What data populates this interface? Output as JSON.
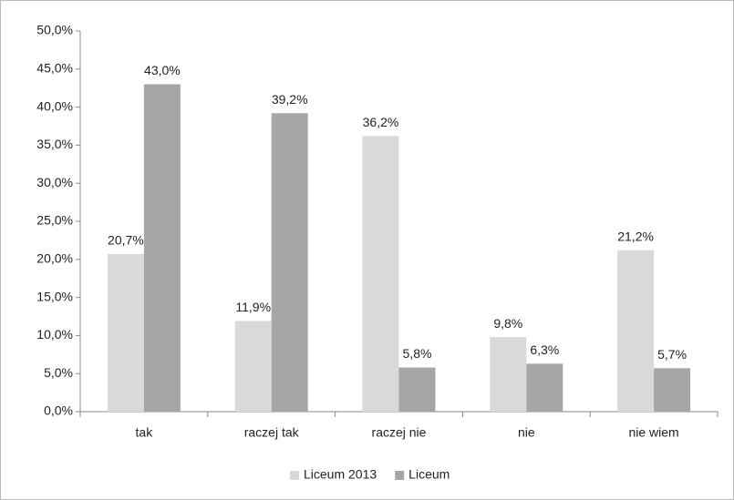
{
  "chart_data": {
    "type": "bar",
    "categories": [
      "tak",
      "raczej tak",
      "raczej nie",
      "nie",
      "nie wiem"
    ],
    "series": [
      {
        "name": "Liceum 2013",
        "color": "#d9d9d9",
        "values": [
          20.7,
          11.9,
          36.2,
          9.8,
          21.2
        ],
        "value_labels": [
          "20,7%",
          "11,9%",
          "36,2%",
          "9,8%",
          "21,2%"
        ]
      },
      {
        "name": "Liceum",
        "color": "#a6a6a6",
        "values": [
          43.0,
          39.2,
          5.8,
          6.3,
          5.7
        ],
        "value_labels": [
          "43,0%",
          "39,2%",
          "5,8%",
          "6,3%",
          "5,7%"
        ]
      }
    ],
    "ylim": [
      0,
      50
    ],
    "yticks": [
      {
        "value": 0,
        "label": "0,0%"
      },
      {
        "value": 5,
        "label": "5,0%"
      },
      {
        "value": 10,
        "label": "10,0%"
      },
      {
        "value": 15,
        "label": "15,0%"
      },
      {
        "value": 20,
        "label": "20,0%"
      },
      {
        "value": 25,
        "label": "25,0%"
      },
      {
        "value": 30,
        "label": "30,0%"
      },
      {
        "value": 35,
        "label": "35,0%"
      },
      {
        "value": 40,
        "label": "40,0%"
      },
      {
        "value": 45,
        "label": "45,0%"
      },
      {
        "value": 50,
        "label": "50,0%"
      }
    ],
    "grid": false,
    "legend": "bottom"
  }
}
